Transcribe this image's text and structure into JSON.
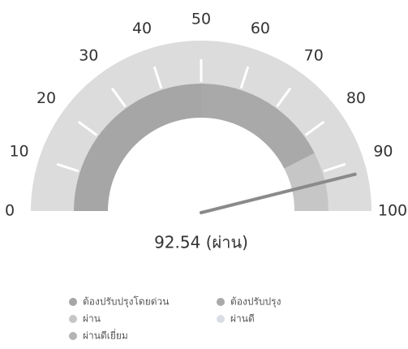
{
  "chart_data": {
    "type": "gauge",
    "value": 92.54,
    "value_label": "92.54 (ผ่าน)",
    "xlim": [
      0,
      100
    ],
    "xticks": [
      0,
      10,
      20,
      30,
      40,
      50,
      60,
      70,
      80,
      90,
      100
    ],
    "needle_color": "#8a8a8a",
    "series": [
      {
        "name": "ต้องปรับปรุงโดยด่วน",
        "color": "#a6a6a6",
        "range": [
          0,
          50
        ]
      },
      {
        "name": "ต้องปรับปรุง",
        "color": "#a9a9a9",
        "range": [
          50,
          85
        ]
      },
      {
        "name": "ผ่าน",
        "color": "#c6c6c6",
        "range": [
          85,
          100
        ]
      },
      {
        "name": "ผ่านดี",
        "color": "#dadde5"
      },
      {
        "name": "ผ่านดีเยี่ยม",
        "color": "#b3b3b3"
      }
    ]
  }
}
